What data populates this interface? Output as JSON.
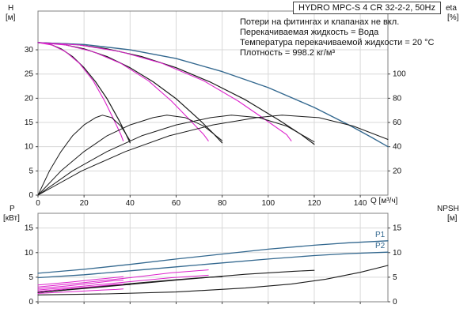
{
  "colors": {
    "black": "#1a1a1a",
    "magenta": "#dd22cc",
    "blue": "#33688f",
    "grid": "#d8d8d8",
    "frame": "#808080",
    "text": "#111111"
  },
  "chart_data": [
    {
      "type": "line",
      "title": "HYDRO MPC-S 4 CR 32-2-2, 50Hz",
      "xlabel": "Q [м³/ч]",
      "ylabel_left": {
        "name": "H",
        "unit": "[м]"
      },
      "ylabel_right": {
        "name": "eta",
        "unit": "[%]"
      },
      "xlim": [
        0,
        152
      ],
      "ylim_left": [
        0,
        38
      ],
      "ylim_right": [
        0,
        152
      ],
      "x_ticks": [
        0,
        20,
        40,
        60,
        80,
        100,
        120,
        140
      ],
      "y_ticks_left": [
        0,
        5,
        10,
        15,
        20,
        25,
        30
      ],
      "y_ticks_right": [
        20,
        40,
        60,
        80,
        100
      ],
      "grid": true,
      "legend": "none",
      "annotations": [
        "Потери на фитингах и клапанах не вкл.",
        "Перекачиваемая жидкость = Вода",
        "Температура перекачиваемой жидкости = 20 °C",
        "Плотность = 998.2 кг/м³"
      ],
      "series": [
        {
          "name": "pump-curve-1",
          "color": "#1a1a1a",
          "width": 1.2,
          "points": [
            [
              0,
              31.5
            ],
            [
              5,
              31.2
            ],
            [
              10,
              30.2
            ],
            [
              15,
              28.6
            ],
            [
              20,
              26.3
            ],
            [
              25,
              23.4
            ],
            [
              30,
              19.9
            ],
            [
              35,
              15.6
            ],
            [
              38,
              12.8
            ],
            [
              40,
              10.8
            ]
          ]
        },
        {
          "name": "pump-curve-2",
          "color": "#1a1a1a",
          "width": 1.2,
          "points": [
            [
              0,
              31.5
            ],
            [
              10,
              31.2
            ],
            [
              20,
              30.2
            ],
            [
              30,
              28.6
            ],
            [
              40,
              26.3
            ],
            [
              50,
              23.4
            ],
            [
              60,
              19.9
            ],
            [
              70,
              15.6
            ],
            [
              76,
              12.8
            ],
            [
              80,
              10.8
            ]
          ]
        },
        {
          "name": "pump-curve-3",
          "color": "#1a1a1a",
          "width": 1.2,
          "points": [
            [
              0,
              31.5
            ],
            [
              15,
              31.2
            ],
            [
              30,
              30.2
            ],
            [
              45,
              28.6
            ],
            [
              60,
              26.3
            ],
            [
              75,
              23.3
            ],
            [
              90,
              19.7
            ],
            [
              105,
              15.4
            ],
            [
              114,
              12.6
            ],
            [
              120,
              10.5
            ]
          ]
        },
        {
          "name": "pump-curve-4-max",
          "color": "#33688f",
          "width": 1.4,
          "points": [
            [
              0,
              31.5
            ],
            [
              20,
              31.1
            ],
            [
              40,
              30.0
            ],
            [
              60,
              28.2
            ],
            [
              80,
              25.5
            ],
            [
              100,
              22.2
            ],
            [
              120,
              18.1
            ],
            [
              135,
              14.5
            ],
            [
              145,
              11.9
            ],
            [
              152,
              10.0
            ]
          ]
        },
        {
          "name": "control-curve-1",
          "color": "#dd22cc",
          "width": 1.1,
          "points": [
            [
              0,
              31.5
            ],
            [
              6,
              31.0
            ],
            [
              12,
              29.6
            ],
            [
              18,
              27.2
            ],
            [
              24,
              23.6
            ],
            [
              29,
              19.4
            ],
            [
              33,
              15.5
            ],
            [
              36,
              12.5
            ],
            [
              37,
              11.2
            ]
          ]
        },
        {
          "name": "control-curve-2",
          "color": "#dd22cc",
          "width": 1.1,
          "points": [
            [
              0,
              31.5
            ],
            [
              12,
              31.0
            ],
            [
              24,
              29.6
            ],
            [
              36,
              27.2
            ],
            [
              48,
              23.6
            ],
            [
              58,
              19.4
            ],
            [
              66,
              15.5
            ],
            [
              72,
              12.5
            ],
            [
              74,
              11.2
            ]
          ]
        },
        {
          "name": "control-curve-3",
          "color": "#dd22cc",
          "width": 1.1,
          "points": [
            [
              0,
              31.5
            ],
            [
              18,
              31.0
            ],
            [
              36,
              29.6
            ],
            [
              54,
              27.2
            ],
            [
              72,
              23.6
            ],
            [
              87,
              19.4
            ],
            [
              99,
              15.5
            ],
            [
              108,
              12.5
            ],
            [
              110,
              11.2
            ]
          ]
        },
        {
          "name": "efficiency-curve-1",
          "color": "#1a1a1a",
          "width": 1,
          "axis": "right",
          "points": [
            [
              0,
              0
            ],
            [
              5,
              20
            ],
            [
              10,
              36
            ],
            [
              15,
              49
            ],
            [
              20,
              58
            ],
            [
              25,
              64
            ],
            [
              28,
              66
            ],
            [
              32,
              64
            ],
            [
              36,
              57
            ],
            [
              40,
              45
            ]
          ]
        },
        {
          "name": "efficiency-curve-2",
          "color": "#1a1a1a",
          "width": 1,
          "axis": "right",
          "points": [
            [
              0,
              0
            ],
            [
              10,
              20
            ],
            [
              20,
              36
            ],
            [
              30,
              49
            ],
            [
              40,
              58
            ],
            [
              50,
              64
            ],
            [
              56,
              66
            ],
            [
              64,
              64
            ],
            [
              72,
              57
            ],
            [
              80,
              45
            ]
          ]
        },
        {
          "name": "efficiency-curve-3",
          "color": "#1a1a1a",
          "width": 1,
          "axis": "right",
          "points": [
            [
              0,
              0
            ],
            [
              15,
              20
            ],
            [
              30,
              36
            ],
            [
              45,
              49
            ],
            [
              60,
              58
            ],
            [
              75,
              64
            ],
            [
              84,
              66
            ],
            [
              96,
              64
            ],
            [
              108,
              57
            ],
            [
              120,
              44
            ]
          ]
        },
        {
          "name": "efficiency-curve-4",
          "color": "#1a1a1a",
          "width": 1,
          "axis": "right",
          "points": [
            [
              0,
              0
            ],
            [
              19,
              20
            ],
            [
              38,
              36
            ],
            [
              57,
              49
            ],
            [
              76,
              58
            ],
            [
              95,
              64
            ],
            [
              106,
              66
            ],
            [
              122,
              64
            ],
            [
              137,
              57
            ],
            [
              152,
              46
            ]
          ]
        }
      ]
    },
    {
      "type": "line",
      "xlabel": "",
      "ylabel_left": {
        "name": "P",
        "unit": "[кВт]"
      },
      "ylabel_right": {
        "name": "NPSH",
        "unit": "[м]"
      },
      "xlim": [
        0,
        152
      ],
      "ylim_left": [
        0,
        18
      ],
      "ylim_right": [
        0,
        18
      ],
      "x_ticks": [
        0,
        20,
        40,
        60,
        80,
        100,
        120,
        140
      ],
      "y_ticks_left": [
        0,
        5,
        10,
        15
      ],
      "y_ticks_right": [
        0,
        5,
        10,
        15
      ],
      "series": [
        {
          "name": "power-p1",
          "color": "#33688f",
          "width": 1.3,
          "end_label": "P1",
          "points": [
            [
              0,
              5.8
            ],
            [
              20,
              6.6
            ],
            [
              40,
              7.6
            ],
            [
              60,
              8.7
            ],
            [
              80,
              9.7
            ],
            [
              100,
              10.7
            ],
            [
              120,
              11.5
            ],
            [
              135,
              12.0
            ],
            [
              152,
              12.4
            ]
          ]
        },
        {
          "name": "power-p2",
          "color": "#33688f",
          "width": 1.3,
          "end_label": "P2",
          "points": [
            [
              0,
              4.9
            ],
            [
              20,
              5.5
            ],
            [
              40,
              6.3
            ],
            [
              60,
              7.1
            ],
            [
              80,
              7.9
            ],
            [
              100,
              8.7
            ],
            [
              120,
              9.4
            ],
            [
              135,
              9.8
            ],
            [
              152,
              10.1
            ]
          ]
        },
        {
          "name": "power-curve-1",
          "color": "#1a1a1a",
          "width": 1.1,
          "points": [
            [
              0,
              1.9
            ],
            [
              10,
              2.3
            ],
            [
              20,
              2.8
            ],
            [
              30,
              3.2
            ],
            [
              37,
              3.5
            ],
            [
              40,
              3.5
            ]
          ]
        },
        {
          "name": "power-curve-2",
          "color": "#1a1a1a",
          "width": 1.1,
          "points": [
            [
              0,
              1.9
            ],
            [
              20,
              2.8
            ],
            [
              40,
              3.7
            ],
            [
              60,
              4.5
            ],
            [
              74,
              5.0
            ],
            [
              80,
              5.1
            ]
          ]
        },
        {
          "name": "power-curve-3",
          "color": "#1a1a1a",
          "width": 1.1,
          "points": [
            [
              0,
              1.9
            ],
            [
              30,
              3.1
            ],
            [
              60,
              4.4
            ],
            [
              90,
              5.6
            ],
            [
              111,
              6.2
            ],
            [
              120,
              6.4
            ]
          ]
        },
        {
          "name": "npsh-curve",
          "color": "#1a1a1a",
          "width": 1.1,
          "points": [
            [
              0,
              1.4
            ],
            [
              30,
              1.6
            ],
            [
              60,
              2.0
            ],
            [
              90,
              2.8
            ],
            [
              110,
              3.6
            ],
            [
              125,
              4.6
            ],
            [
              140,
              6.0
            ],
            [
              152,
              7.4
            ]
          ]
        },
        {
          "name": "power-limit-1",
          "color": "#dd22cc",
          "width": 1,
          "points": [
            [
              0,
              2.1
            ],
            [
              12,
              2.6
            ],
            [
              24,
              3.1
            ],
            [
              33,
              3.5
            ],
            [
              37,
              3.6
            ]
          ]
        },
        {
          "name": "power-limit-2",
          "color": "#dd22cc",
          "width": 1,
          "points": [
            [
              0,
              2.7
            ],
            [
              12,
              3.2
            ],
            [
              24,
              3.8
            ],
            [
              33,
              4.3
            ],
            [
              37,
              4.4
            ]
          ]
        },
        {
          "name": "power-limit-3",
          "color": "#dd22cc",
          "width": 1,
          "points": [
            [
              0,
              2.4
            ],
            [
              20,
              3.2
            ],
            [
              40,
              4.1
            ],
            [
              58,
              4.9
            ],
            [
              74,
              5.4
            ]
          ]
        },
        {
          "name": "power-limit-4",
          "color": "#dd22cc",
          "width": 1,
          "points": [
            [
              0,
              3.0
            ],
            [
              20,
              3.9
            ],
            [
              40,
              4.9
            ],
            [
              58,
              5.9
            ],
            [
              74,
              6.5
            ]
          ]
        },
        {
          "name": "power-limit-5",
          "color": "#dd22cc",
          "width": 1,
          "points": [
            [
              0,
              1.7
            ],
            [
              12,
              2.0
            ],
            [
              24,
              2.3
            ],
            [
              34,
              2.5
            ],
            [
              37,
              2.6
            ]
          ]
        },
        {
          "name": "power-limit-6",
          "color": "#dd22cc",
          "width": 1,
          "points": [
            [
              0,
              3.4
            ],
            [
              14,
              4.0
            ],
            [
              26,
              4.6
            ],
            [
              35,
              5.0
            ],
            [
              37,
              5.1
            ]
          ]
        }
      ]
    }
  ]
}
